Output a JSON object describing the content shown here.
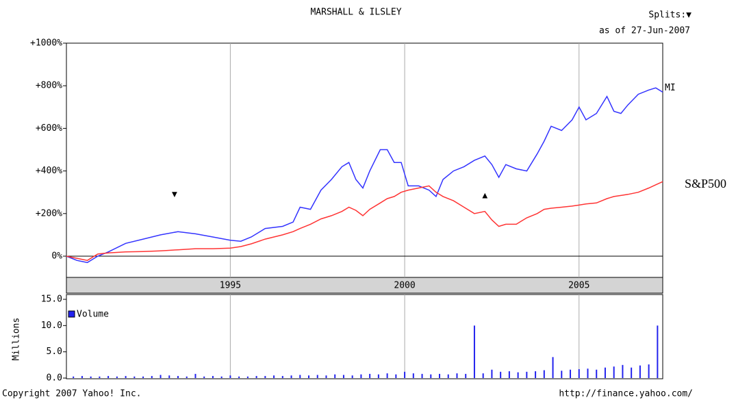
{
  "chart_data": [
    {
      "type": "line",
      "title": "MARSHALL & ILSLEY",
      "splits_label": "Splits:▼",
      "date_note": "as of 27-Jun-2007",
      "xlim": [
        1990.3,
        2007.4
      ],
      "xticks": [
        1995,
        2000,
        2005
      ],
      "ylim": [
        -90,
        1000
      ],
      "yticks": [
        {
          "value": 1000,
          "label": "+1000%"
        },
        {
          "value": 800,
          "label": "+800%"
        },
        {
          "value": 600,
          "label": "+600%"
        },
        {
          "value": 400,
          "label": "+400%"
        },
        {
          "value": 200,
          "label": "+200%"
        },
        {
          "value": 0,
          "label": "0%"
        }
      ],
      "grid": true,
      "x": [
        1990.3,
        1990.6,
        1990.9,
        1991.2,
        1991.5,
        1992,
        1992.5,
        1993,
        1993.5,
        1994,
        1994.5,
        1995,
        1995.3,
        1995.6,
        1996,
        1996.5,
        1996.8,
        1997,
        1997.3,
        1997.6,
        1997.9,
        1998.2,
        1998.4,
        1998.6,
        1998.8,
        1999,
        1999.3,
        1999.5,
        1999.7,
        1999.9,
        2000.1,
        2000.4,
        2000.7,
        2000.9,
        2001.1,
        2001.4,
        2001.7,
        2002,
        2002.3,
        2002.5,
        2002.7,
        2002.9,
        2003.2,
        2003.5,
        2003.8,
        2004,
        2004.2,
        2004.5,
        2004.8,
        2005,
        2005.2,
        2005.5,
        2005.8,
        2006,
        2006.2,
        2006.4,
        2006.7,
        2007,
        2007.2,
        2007.4
      ],
      "series": [
        {
          "name": "MI",
          "color": "#3333ff",
          "values": [
            0,
            -20,
            -30,
            0,
            20,
            60,
            80,
            100,
            115,
            105,
            90,
            75,
            70,
            90,
            130,
            140,
            160,
            230,
            220,
            310,
            360,
            420,
            440,
            360,
            320,
            400,
            500,
            500,
            440,
            440,
            330,
            330,
            310,
            280,
            360,
            400,
            420,
            450,
            470,
            430,
            370,
            430,
            410,
            400,
            480,
            540,
            610,
            590,
            640,
            700,
            640,
            670,
            750,
            680,
            670,
            710,
            760,
            780,
            790,
            770
          ]
        },
        {
          "name": "S&P500",
          "color": "#ff3333",
          "values": [
            0,
            -10,
            -20,
            10,
            15,
            20,
            22,
            25,
            30,
            35,
            35,
            38,
            45,
            58,
            80,
            100,
            115,
            130,
            150,
            175,
            190,
            210,
            230,
            215,
            190,
            220,
            250,
            270,
            280,
            300,
            310,
            320,
            330,
            300,
            280,
            260,
            230,
            200,
            210,
            170,
            140,
            150,
            150,
            180,
            200,
            220,
            225,
            230,
            235,
            240,
            245,
            250,
            270,
            280,
            285,
            290,
            300,
            320,
            335,
            350
          ]
        }
      ],
      "splits": [
        {
          "x": 1993.4,
          "y": 290,
          "symbol": "▼"
        },
        {
          "x": 2002.3,
          "y": 285,
          "symbol": "▲"
        }
      ]
    },
    {
      "type": "bar",
      "ylabel": "Millions",
      "xlim": [
        1990.3,
        2007.4
      ],
      "xticks": [
        1995,
        2000,
        2005
      ],
      "ylim": [
        0,
        15
      ],
      "yticks": [
        {
          "value": 15,
          "label": "15.0"
        },
        {
          "value": 10,
          "label": "10.0"
        },
        {
          "value": 5,
          "label": "5.0"
        },
        {
          "value": 0,
          "label": "0.0"
        }
      ],
      "grid": true,
      "series": [
        {
          "name": "Volume",
          "color": "#2222ee",
          "x": [
            1990.5,
            1990.75,
            1991,
            1991.25,
            1991.5,
            1991.75,
            1992,
            1992.25,
            1992.5,
            1992.75,
            1993,
            1993.25,
            1993.5,
            1993.75,
            1994,
            1994.25,
            1994.5,
            1994.75,
            1995,
            1995.25,
            1995.5,
            1995.75,
            1996,
            1996.25,
            1996.5,
            1996.75,
            1997,
            1997.25,
            1997.5,
            1997.75,
            1998,
            1998.25,
            1998.5,
            1998.75,
            1999,
            1999.25,
            1999.5,
            1999.75,
            2000,
            2000.25,
            2000.5,
            2000.75,
            2001,
            2001.25,
            2001.5,
            2001.75,
            2002,
            2002.25,
            2002.5,
            2002.75,
            2003,
            2003.25,
            2003.5,
            2003.75,
            2004,
            2004.25,
            2004.5,
            2004.75,
            2005,
            2005.25,
            2005.5,
            2005.75,
            2006,
            2006.25,
            2006.5,
            2006.75,
            2007,
            2007.25
          ],
          "values": [
            0.3,
            0.4,
            0.3,
            0.3,
            0.4,
            0.3,
            0.4,
            0.3,
            0.3,
            0.4,
            0.6,
            0.5,
            0.4,
            0.3,
            0.8,
            0.3,
            0.4,
            0.3,
            0.5,
            0.3,
            0.3,
            0.4,
            0.4,
            0.5,
            0.4,
            0.5,
            0.6,
            0.5,
            0.6,
            0.5,
            0.7,
            0.6,
            0.5,
            0.7,
            0.8,
            0.7,
            0.9,
            0.7,
            1.2,
            0.9,
            0.8,
            0.7,
            0.8,
            0.7,
            0.9,
            0.8,
            10.0,
            0.9,
            1.6,
            1.2,
            1.3,
            1.1,
            1.2,
            1.3,
            1.5,
            4.0,
            1.4,
            1.6,
            1.7,
            1.8,
            1.6,
            2.0,
            2.2,
            2.5,
            2.0,
            2.4,
            2.6,
            10.0
          ]
        }
      ]
    }
  ],
  "footer": {
    "copyright": "Copyright 2007 Yahoo! Inc.",
    "url": "http://finance.yahoo.com/"
  }
}
